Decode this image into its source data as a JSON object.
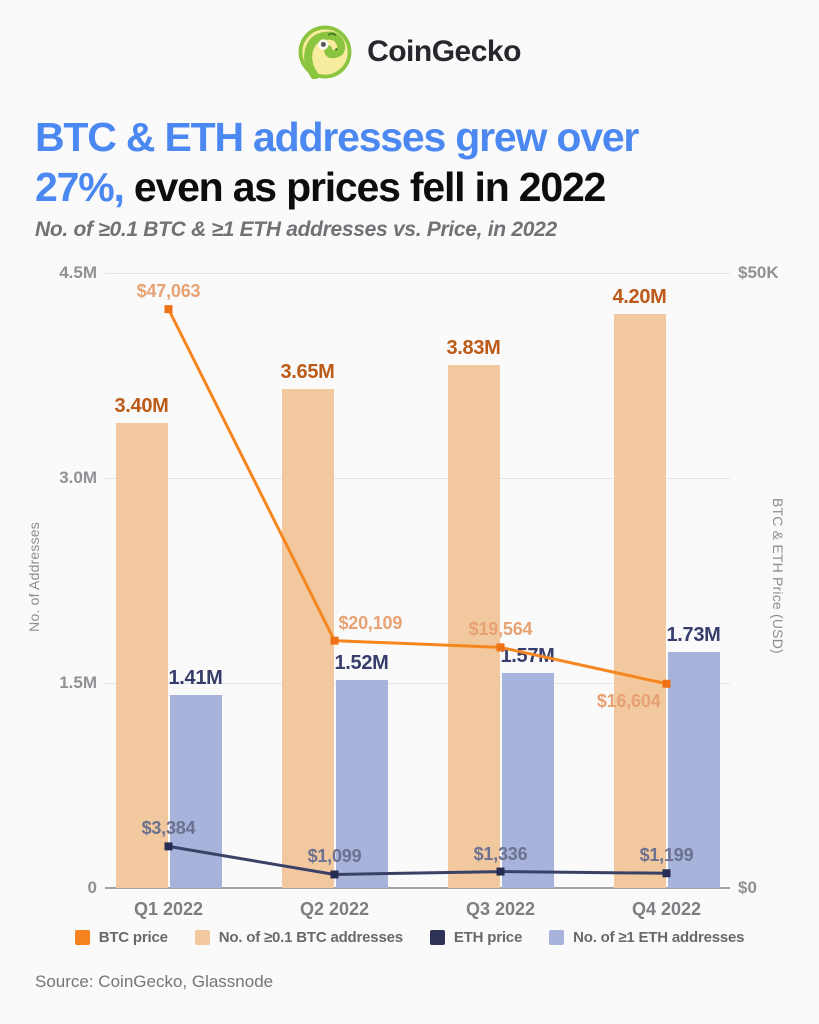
{
  "brand": {
    "name": "CoinGecko"
  },
  "title": {
    "line1_blue": "BTC & ETH addresses grew over",
    "line2_blue": "27%,",
    "line2_dark": "even as prices fell in 2022"
  },
  "subtitle": "No. of ≥0.1 BTC & ≥1 ETH addresses vs. Price, in 2022",
  "source": "Source: CoinGecko, Glassnode",
  "chart_data": {
    "type": "combo-bar-line",
    "categories": [
      "Q1 2022",
      "Q2 2022",
      "Q3 2022",
      "Q4 2022"
    ],
    "left_axis": {
      "label": "No. of Addresses",
      "max": 4500000,
      "ticks": [
        {
          "label": "0",
          "value": 0
        },
        {
          "label": "1.5M",
          "value": 1500000
        },
        {
          "label": "3.0M",
          "value": 3000000
        },
        {
          "label": "4.5M",
          "value": 4500000
        }
      ]
    },
    "right_axis": {
      "label": "BTC & ETH Price (USD)",
      "max": 50000,
      "ticks": [
        {
          "label": "$0",
          "value": 0
        },
        {
          "label": "$50K",
          "value": 50000
        }
      ]
    },
    "grid": "horizontal",
    "legend_position": "bottom",
    "series": [
      {
        "name": "No. of ≥0.1 BTC addresses",
        "type": "bar",
        "axis": "left",
        "color": "#F2C89E",
        "label_color": "#BC5A18",
        "values": [
          3400000,
          3650000,
          3830000,
          4200000
        ],
        "value_labels": [
          "3.40M",
          "3.65M",
          "3.83M",
          "4.20M"
        ]
      },
      {
        "name": "No. of ≥1 ETH addresses",
        "type": "bar",
        "axis": "left",
        "color": "#A8B3DB",
        "label_color": "#373E6B",
        "values": [
          1410000,
          1520000,
          1570000,
          1730000
        ],
        "value_labels": [
          "1.41M",
          "1.52M",
          "1.57M",
          "1.73M"
        ]
      },
      {
        "name": "BTC price",
        "type": "line",
        "axis": "right",
        "color": "#F6861F",
        "marker_color": "#EE7317",
        "label_color": "#E7A273",
        "values": [
          47063,
          20109,
          19564,
          16604
        ],
        "value_labels": [
          "$47,063",
          "$20,109",
          "$19,564",
          "$16,604"
        ],
        "label_pos": [
          "above",
          "above-right",
          "above",
          "below-left"
        ]
      },
      {
        "name": "ETH price",
        "type": "line",
        "axis": "right",
        "color": "#3A4166",
        "marker_color": "#272C52",
        "label_color": "#6C7190",
        "values": [
          3384,
          1099,
          1336,
          1199
        ],
        "value_labels": [
          "$3,384",
          "$1,099",
          "$1,336",
          "$1,199"
        ],
        "label_pos": [
          "above",
          "above",
          "above",
          "above"
        ]
      }
    ],
    "legend": [
      {
        "label": "BTC price",
        "color": "#F6821F"
      },
      {
        "label": "No. of ≥0.1 BTC addresses",
        "color": "#F2C89E"
      },
      {
        "label": "ETH price",
        "color": "#2D3256"
      },
      {
        "label": "No. of ≥1 ETH addresses",
        "color": "#A8B3DB"
      }
    ]
  }
}
